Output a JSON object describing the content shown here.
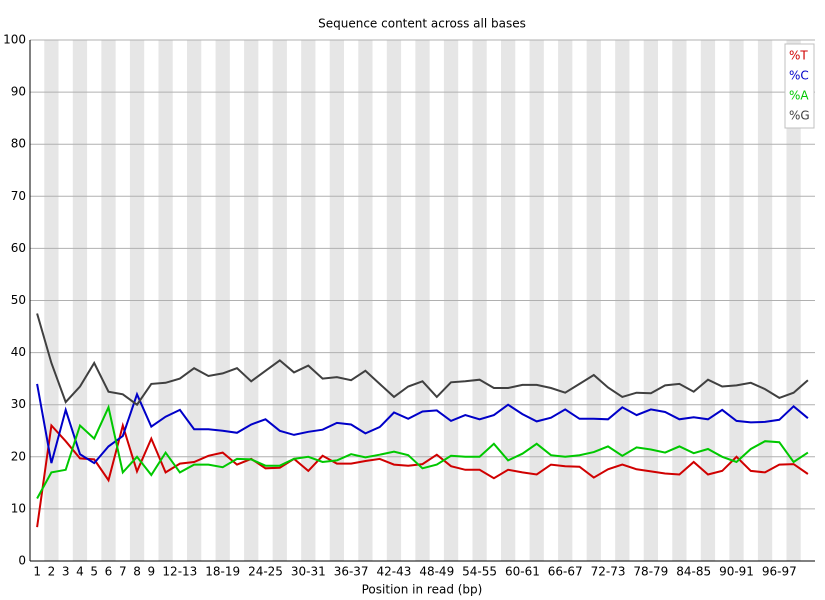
{
  "chart_data": {
    "type": "line",
    "title": "Sequence content across all bases",
    "x_label": "Position in read (bp)",
    "categories": [
      "1",
      "2",
      "3",
      "4",
      "5",
      "6",
      "7",
      "8",
      "9",
      null,
      "12-13",
      null,
      null,
      "18-19",
      null,
      null,
      "24-25",
      null,
      null,
      "30-31",
      null,
      null,
      "36-37",
      null,
      null,
      "42-43",
      null,
      null,
      "48-49",
      null,
      null,
      "54-55",
      null,
      null,
      "60-61",
      null,
      null,
      "66-67",
      null,
      null,
      "72-73",
      null,
      null,
      "78-79",
      null,
      null,
      "84-85",
      null,
      null,
      "90-91",
      null,
      null,
      "96-97",
      null,
      null
    ],
    "series": [
      {
        "name": "%T",
        "color": "#d00000",
        "values": [
          6.5,
          26,
          23,
          19.7,
          19.5,
          15.5,
          26,
          17.2,
          23.5,
          17,
          18.7,
          19,
          20.2,
          20.8,
          18.5,
          19.6,
          17.8,
          17.9,
          19.6,
          17.3,
          20.2,
          18.7,
          18.7,
          19.2,
          19.6,
          18.5,
          18.3,
          18.6,
          20.4,
          18.2,
          17.5,
          17.5,
          15.9,
          17.5,
          17,
          16.6,
          18.5,
          18.2,
          18.1,
          16,
          17.6,
          18.5,
          17.6,
          17.2,
          16.8,
          16.6,
          19,
          16.6,
          17.3,
          20,
          17.3,
          17,
          18.5,
          18.6,
          16.7
        ]
      },
      {
        "name": "%C",
        "color": "#0000c8",
        "values": [
          34,
          18.8,
          29,
          20.5,
          18.8,
          22,
          24,
          32,
          25.8,
          27.7,
          29,
          25.3,
          25.3,
          25,
          24.6,
          26.2,
          27.2,
          25,
          24.2,
          24.8,
          25.2,
          26.5,
          26.2,
          24.5,
          25.7,
          28.5,
          27.3,
          28.7,
          28.9,
          26.9,
          28,
          27.2,
          28,
          30,
          28.2,
          26.8,
          27.5,
          29.1,
          27.3,
          27.3,
          27.2,
          29.5,
          28,
          29.1,
          28.6,
          27.2,
          27.6,
          27.2,
          29,
          26.9,
          26.6,
          26.7,
          27.1,
          29.7,
          27.4
        ]
      },
      {
        "name": "%A",
        "color": "#00c800",
        "values": [
          12,
          17,
          17.5,
          26,
          23.5,
          29.5,
          17,
          20,
          16.5,
          20.8,
          17,
          18.5,
          18.5,
          18,
          19.6,
          19.5,
          18.3,
          18.3,
          19.6,
          20,
          19,
          19.3,
          20.5,
          19.9,
          20.4,
          21,
          20.3,
          17.8,
          18.5,
          20.2,
          20,
          20,
          22.5,
          19.3,
          20.6,
          22.5,
          20.3,
          20,
          20.3,
          20.9,
          22,
          20.2,
          21.8,
          21.4,
          20.8,
          22,
          20.7,
          21.5,
          20,
          19,
          21.5,
          23,
          22.8,
          19,
          20.8
        ]
      },
      {
        "name": "%G",
        "color": "#404040",
        "values": [
          47.5,
          38,
          30.5,
          33.5,
          38,
          32.5,
          32,
          30,
          34,
          34.2,
          35,
          37,
          35.5,
          36,
          37,
          34.5,
          36.5,
          38.5,
          36.2,
          37.5,
          35,
          35.3,
          34.7,
          36.5,
          34,
          31.5,
          33.5,
          34.5,
          31.5,
          34.3,
          34.5,
          34.8,
          33.2,
          33.2,
          33.8,
          33.8,
          33.2,
          32.3,
          34,
          35.7,
          33.3,
          31.5,
          32.3,
          32.2,
          33.7,
          34,
          32.5,
          34.8,
          33.5,
          33.7,
          34.2,
          33,
          31.3,
          32.3,
          34.7
        ]
      }
    ],
    "ylim": [
      0,
      100
    ],
    "yticks": [
      0,
      10,
      20,
      30,
      40,
      50,
      60,
      70,
      80,
      90,
      100
    ],
    "grid": true,
    "legend": "top-right"
  }
}
